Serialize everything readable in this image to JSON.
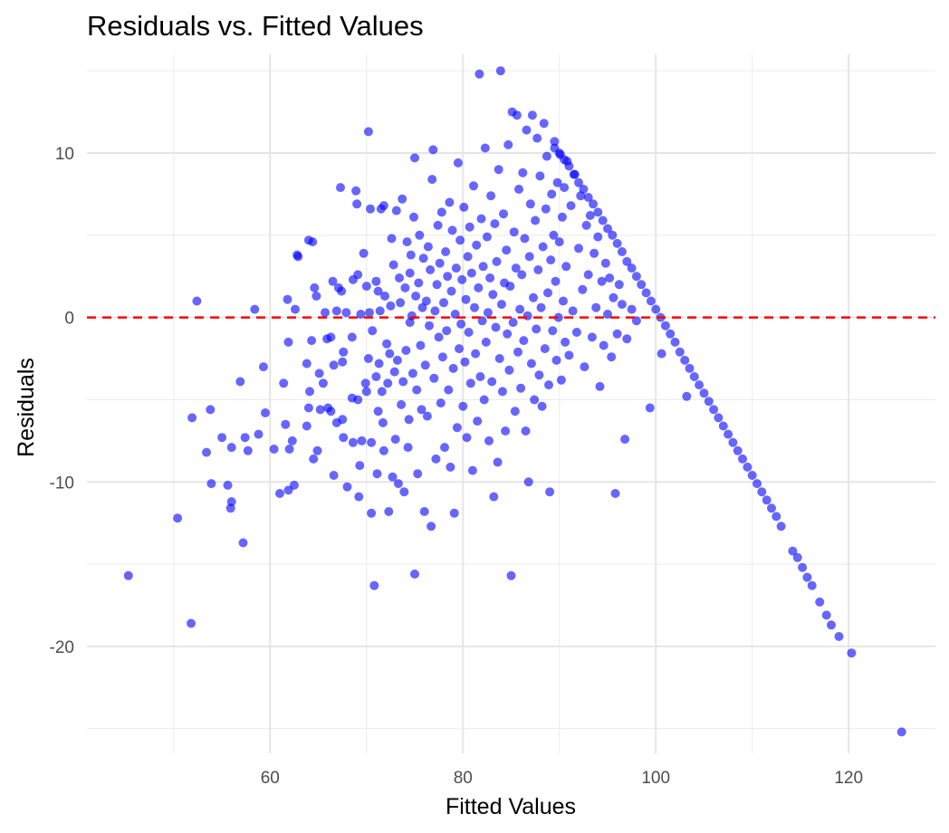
{
  "chart_data": {
    "type": "scatter",
    "title": "Residuals vs. Fitted Values",
    "xlabel": "Fitted Values",
    "ylabel": "Residuals",
    "xlim": [
      41,
      129
    ],
    "ylim": [
      -26.5,
      16
    ],
    "x_ticks": [
      60,
      80,
      100,
      120
    ],
    "y_ticks": [
      -20,
      -10,
      0,
      10
    ],
    "x_tick_labels": [
      "60",
      "80",
      "100",
      "120"
    ],
    "y_tick_labels": [
      "-20",
      "-10",
      "0",
      "10"
    ],
    "grid": true,
    "point_color": "#0000ff",
    "point_alpha": 0.6,
    "reference_line": {
      "y": 0,
      "color": "#ff0000",
      "style": "dashed"
    },
    "points": [
      [
        45.3,
        -15.7
      ],
      [
        50.4,
        -12.2
      ],
      [
        51.8,
        -18.6
      ],
      [
        51.9,
        -6.1
      ],
      [
        52.4,
        1.0
      ],
      [
        53.4,
        -8.2
      ],
      [
        53.8,
        -5.6
      ],
      [
        53.9,
        -10.1
      ],
      [
        55.0,
        -7.3
      ],
      [
        55.6,
        -10.2
      ],
      [
        55.9,
        -11.6
      ],
      [
        56.0,
        -11.2
      ],
      [
        56.0,
        -7.9
      ],
      [
        56.9,
        -3.9
      ],
      [
        57.2,
        -13.7
      ],
      [
        57.4,
        -7.3
      ],
      [
        57.7,
        -8.1
      ],
      [
        58.4,
        0.5
      ],
      [
        58.8,
        -7.1
      ],
      [
        59.3,
        -3.0
      ],
      [
        59.5,
        -5.8
      ],
      [
        60.4,
        -8.0
      ],
      [
        61.0,
        -10.7
      ],
      [
        61.4,
        -4.0
      ],
      [
        61.6,
        -6.5
      ],
      [
        61.8,
        1.1
      ],
      [
        61.9,
        -1.5
      ],
      [
        61.9,
        -10.5
      ],
      [
        62.0,
        -8.0
      ],
      [
        62.3,
        -7.5
      ],
      [
        62.5,
        -10.2
      ],
      [
        62.6,
        0.5
      ],
      [
        62.8,
        3.8
      ],
      [
        62.9,
        3.7
      ],
      [
        63.8,
        -6.6
      ],
      [
        63.8,
        -2.8
      ],
      [
        64.0,
        4.7
      ],
      [
        64.0,
        -5.5
      ],
      [
        64.1,
        -4.5
      ],
      [
        64.3,
        -1.4
      ],
      [
        64.4,
        4.6
      ],
      [
        64.5,
        -8.6
      ],
      [
        64.6,
        1.8
      ],
      [
        64.8,
        1.3
      ],
      [
        64.9,
        -8.1
      ],
      [
        65.1,
        -3.4
      ],
      [
        65.2,
        -5.6
      ],
      [
        65.5,
        -4.0
      ],
      [
        65.7,
        0.3
      ],
      [
        65.9,
        -1.3
      ],
      [
        66.0,
        -5.5
      ],
      [
        66.3,
        -1.2
      ],
      [
        66.3,
        -5.7
      ],
      [
        66.5,
        2.2
      ],
      [
        66.6,
        -2.9
      ],
      [
        66.6,
        -9.6
      ],
      [
        66.9,
        0.4
      ],
      [
        66.9,
        -6.4
      ],
      [
        67.1,
        1.8
      ],
      [
        67.3,
        7.9
      ],
      [
        67.4,
        1.6
      ],
      [
        67.5,
        -2.7
      ],
      [
        67.5,
        -6.2
      ],
      [
        67.6,
        -2.1
      ],
      [
        67.6,
        -7.3
      ],
      [
        67.9,
        0.3
      ],
      [
        68.0,
        -10.3
      ],
      [
        68.5,
        -4.9
      ],
      [
        68.5,
        -1.2
      ],
      [
        68.6,
        2.3
      ],
      [
        68.6,
        -7.6
      ],
      [
        68.9,
        7.7
      ],
      [
        69.0,
        6.9
      ],
      [
        69.1,
        2.6
      ],
      [
        69.1,
        -5.0
      ],
      [
        69.2,
        -10.9
      ],
      [
        69.3,
        -9.0
      ],
      [
        69.4,
        0.2
      ],
      [
        69.5,
        -7.5
      ],
      [
        69.7,
        3.9
      ],
      [
        69.9,
        -4.0
      ],
      [
        70.0,
        -4.5
      ],
      [
        70.0,
        1.9
      ],
      [
        70.2,
        11.3
      ],
      [
        70.2,
        -2.5
      ],
      [
        70.3,
        0.3
      ],
      [
        70.4,
        6.6
      ],
      [
        70.5,
        -11.9
      ],
      [
        70.5,
        -7.6
      ],
      [
        70.6,
        -0.8
      ],
      [
        70.8,
        -16.3
      ],
      [
        71.0,
        2.2
      ],
      [
        71.0,
        -3.6
      ],
      [
        71.1,
        -9.5
      ],
      [
        71.2,
        -5.7
      ],
      [
        71.2,
        1.6
      ],
      [
        71.3,
        -2.8
      ],
      [
        71.4,
        0.4
      ],
      [
        71.5,
        6.6
      ],
      [
        71.6,
        -4.5
      ],
      [
        71.7,
        -6.4
      ],
      [
        71.8,
        6.8
      ],
      [
        71.8,
        -8.1
      ],
      [
        71.9,
        1.3
      ],
      [
        72.1,
        -1.6
      ],
      [
        72.2,
        -4.0
      ],
      [
        72.3,
        -11.8
      ],
      [
        72.4,
        -2.2
      ],
      [
        72.5,
        0.7
      ],
      [
        72.6,
        4.8
      ],
      [
        72.7,
        -9.7
      ],
      [
        72.8,
        3.2
      ],
      [
        72.9,
        -3.3
      ],
      [
        73.0,
        -7.4
      ],
      [
        73.1,
        6.5
      ],
      [
        73.2,
        -2.6
      ],
      [
        73.3,
        -10.1
      ],
      [
        73.4,
        2.4
      ],
      [
        73.5,
        0.9
      ],
      [
        73.6,
        -5.3
      ],
      [
        73.7,
        7.2
      ],
      [
        73.8,
        -3.9
      ],
      [
        73.9,
        -10.6
      ],
      [
        74.0,
        1.8
      ],
      [
        74.1,
        -2.0
      ],
      [
        74.2,
        4.6
      ],
      [
        74.3,
        -7.9
      ],
      [
        74.4,
        -6.2
      ],
      [
        74.5,
        2.7
      ],
      [
        74.5,
        -0.3
      ],
      [
        74.6,
        3.8
      ],
      [
        74.7,
        0.1
      ],
      [
        74.8,
        -3.4
      ],
      [
        74.9,
        6.1
      ],
      [
        75.0,
        9.7
      ],
      [
        75.0,
        -15.6
      ],
      [
        75.1,
        1.3
      ],
      [
        75.2,
        -4.4
      ],
      [
        75.3,
        -9.5
      ],
      [
        75.4,
        2.1
      ],
      [
        75.5,
        5.0
      ],
      [
        75.6,
        -1.7
      ],
      [
        75.7,
        -5.6
      ],
      [
        75.8,
        0.6
      ],
      [
        75.9,
        3.6
      ],
      [
        76.0,
        -11.8
      ],
      [
        76.1,
        -2.9
      ],
      [
        76.2,
        1.0
      ],
      [
        76.3,
        -6.0
      ],
      [
        76.4,
        4.3
      ],
      [
        76.5,
        -0.5
      ],
      [
        76.6,
        2.9
      ],
      [
        76.7,
        -12.7
      ],
      [
        76.8,
        8.4
      ],
      [
        76.9,
        10.2
      ],
      [
        77.0,
        -3.7
      ],
      [
        77.1,
        0.4
      ],
      [
        77.2,
        -8.6
      ],
      [
        77.3,
        2.0
      ],
      [
        77.4,
        5.6
      ],
      [
        77.5,
        -1.2
      ],
      [
        77.6,
        3.3
      ],
      [
        77.7,
        -5.2
      ],
      [
        77.8,
        6.4
      ],
      [
        77.9,
        -2.4
      ],
      [
        78.0,
        0.9
      ],
      [
        78.1,
        -7.9
      ],
      [
        78.2,
        4.0
      ],
      [
        78.3,
        -0.8
      ],
      [
        78.4,
        2.5
      ],
      [
        78.5,
        -4.4
      ],
      [
        78.6,
        7.0
      ],
      [
        78.7,
        -9.1
      ],
      [
        78.8,
        1.6
      ],
      [
        78.9,
        5.3
      ],
      [
        79.0,
        -3.1
      ],
      [
        79.1,
        -11.9
      ],
      [
        79.2,
        0.2
      ],
      [
        79.3,
        3.0
      ],
      [
        79.4,
        -6.7
      ],
      [
        79.5,
        9.4
      ],
      [
        79.6,
        -1.9
      ],
      [
        79.7,
        4.7
      ],
      [
        79.8,
        -0.4
      ],
      [
        79.9,
        2.3
      ],
      [
        80.0,
        -5.4
      ],
      [
        80.1,
        6.7
      ],
      [
        80.2,
        -2.7
      ],
      [
        80.3,
        1.1
      ],
      [
        80.4,
        -7.3
      ],
      [
        80.5,
        3.7
      ],
      [
        80.6,
        -0.9
      ],
      [
        80.7,
        5.5
      ],
      [
        80.8,
        -4.0
      ],
      [
        80.9,
        2.7
      ],
      [
        81.0,
        -9.3
      ],
      [
        81.1,
        8.0
      ],
      [
        81.2,
        0.6
      ],
      [
        81.3,
        -2.2
      ],
      [
        81.4,
        4.4
      ],
      [
        81.5,
        -6.3
      ],
      [
        81.6,
        1.8
      ],
      [
        81.7,
        14.8
      ],
      [
        81.8,
        -3.6
      ],
      [
        81.9,
        6.0
      ],
      [
        82.0,
        -0.2
      ],
      [
        82.1,
        3.1
      ],
      [
        82.2,
        -5.0
      ],
      [
        82.3,
        10.3
      ],
      [
        82.4,
        -1.5
      ],
      [
        82.5,
        4.9
      ],
      [
        82.6,
        0.3
      ],
      [
        82.7,
        -7.5
      ],
      [
        82.8,
        2.4
      ],
      [
        82.9,
        7.4
      ],
      [
        83.0,
        -3.9
      ],
      [
        83.1,
        1.4
      ],
      [
        83.2,
        -10.9
      ],
      [
        83.3,
        5.7
      ],
      [
        83.4,
        -0.6
      ],
      [
        83.5,
        3.4
      ],
      [
        83.6,
        -8.8
      ],
      [
        83.7,
        9.0
      ],
      [
        83.8,
        -2.5
      ],
      [
        83.9,
        15.0
      ],
      [
        84.0,
        0.8
      ],
      [
        84.1,
        -4.5
      ],
      [
        84.2,
        6.3
      ],
      [
        84.3,
        2.1
      ],
      [
        84.4,
        -6.9
      ],
      [
        84.5,
        4.1
      ],
      [
        84.6,
        -1.0
      ],
      [
        84.7,
        10.5
      ],
      [
        84.8,
        -3.2
      ],
      [
        84.9,
        1.9
      ],
      [
        85.0,
        -15.7
      ],
      [
        85.1,
        12.5
      ],
      [
        85.2,
        -0.3
      ],
      [
        85.3,
        5.2
      ],
      [
        85.4,
        -5.7
      ],
      [
        85.5,
        3.0
      ],
      [
        85.6,
        12.3
      ],
      [
        85.7,
        -2.1
      ],
      [
        85.8,
        7.8
      ],
      [
        85.9,
        0.5
      ],
      [
        86.0,
        -4.3
      ],
      [
        86.1,
        2.6
      ],
      [
        86.2,
        8.8
      ],
      [
        86.3,
        -1.4
      ],
      [
        86.4,
        4.8
      ],
      [
        86.5,
        -6.9
      ],
      [
        86.6,
        11.4
      ],
      [
        86.7,
        0.1
      ],
      [
        86.8,
        -10.0
      ],
      [
        86.9,
        3.7
      ],
      [
        87.0,
        6.9
      ],
      [
        87.1,
        -2.8
      ],
      [
        87.2,
        12.3
      ],
      [
        87.3,
        1.2
      ],
      [
        87.4,
        -5.0
      ],
      [
        87.5,
        5.9
      ],
      [
        87.6,
        -0.7
      ],
      [
        87.7,
        10.9
      ],
      [
        87.8,
        2.9
      ],
      [
        87.9,
        -3.5
      ],
      [
        88.0,
        8.6
      ],
      [
        88.1,
        0.6
      ],
      [
        88.2,
        -5.4
      ],
      [
        88.3,
        4.3
      ],
      [
        88.4,
        11.8
      ],
      [
        88.5,
        -1.9
      ],
      [
        88.6,
        6.6
      ],
      [
        88.7,
        9.8
      ],
      [
        88.8,
        1.5
      ],
      [
        88.9,
        -4.1
      ],
      [
        89.0,
        -10.6
      ],
      [
        89.1,
        3.5
      ],
      [
        89.2,
        7.5
      ],
      [
        89.3,
        -0.8
      ],
      [
        89.4,
        5.0
      ],
      [
        89.5,
        10.7
      ],
      [
        89.6,
        2.2
      ],
      [
        89.7,
        -2.6
      ],
      [
        89.8,
        8.2
      ],
      [
        89.9,
        0.0
      ],
      [
        90.0,
        4.6
      ],
      [
        90.1,
        9.9
      ],
      [
        90.2,
        -3.8
      ],
      [
        90.3,
        6.1
      ],
      [
        90.4,
        1.0
      ],
      [
        90.5,
        7.9
      ],
      [
        90.6,
        -1.5
      ],
      [
        90.7,
        3.1
      ],
      [
        90.8,
        9.5
      ],
      [
        91.0,
        -2.3
      ],
      [
        91.2,
        6.8
      ],
      [
        91.4,
        0.4
      ],
      [
        91.6,
        8.7
      ],
      [
        91.8,
        -0.9
      ],
      [
        92.0,
        4.2
      ],
      [
        92.2,
        7.4
      ],
      [
        92.4,
        1.7
      ],
      [
        92.6,
        -3.0
      ],
      [
        92.8,
        5.6
      ],
      [
        93.0,
        2.6
      ],
      [
        93.2,
        6.2
      ],
      [
        93.4,
        -1.2
      ],
      [
        93.6,
        3.9
      ],
      [
        93.8,
        0.6
      ],
      [
        94.0,
        4.9
      ],
      [
        94.2,
        -4.2
      ],
      [
        94.4,
        2.2
      ],
      [
        94.6,
        -1.7
      ],
      [
        94.8,
        3.3
      ],
      [
        95.0,
        0.2
      ],
      [
        95.2,
        2.4
      ],
      [
        95.4,
        -2.4
      ],
      [
        95.6,
        1.2
      ],
      [
        95.8,
        -10.7
      ],
      [
        96.0,
        -1.0
      ],
      [
        96.2,
        2.0
      ],
      [
        96.5,
        0.8
      ],
      [
        96.8,
        -7.4
      ],
      [
        97.0,
        -1.3
      ],
      [
        97.5,
        0.5
      ],
      [
        98.0,
        -0.2
      ],
      [
        99.4,
        -5.5
      ],
      [
        100.6,
        -2.2
      ],
      [
        103.2,
        -4.8
      ],
      [
        89.5,
        10.3
      ],
      [
        90.0,
        10.0
      ],
      [
        90.5,
        9.6
      ],
      [
        91.0,
        9.2
      ],
      [
        91.5,
        8.7
      ],
      [
        92.0,
        8.2
      ],
      [
        92.5,
        7.8
      ],
      [
        93.0,
        7.3
      ],
      [
        93.5,
        6.9
      ],
      [
        94.0,
        6.4
      ],
      [
        94.5,
        5.9
      ],
      [
        95.0,
        5.4
      ],
      [
        95.5,
        5.0
      ],
      [
        96.0,
        4.5
      ],
      [
        96.5,
        4.0
      ],
      [
        97.0,
        3.4
      ],
      [
        97.5,
        3.0
      ],
      [
        98.0,
        2.5
      ],
      [
        98.5,
        2.0
      ],
      [
        99.0,
        1.5
      ],
      [
        99.5,
        1.0
      ],
      [
        100.0,
        0.5
      ],
      [
        100.5,
        0.0
      ],
      [
        101.0,
        -0.5
      ],
      [
        101.5,
        -1.0
      ],
      [
        102.0,
        -1.5
      ],
      [
        102.5,
        -2.1
      ],
      [
        103.0,
        -2.6
      ],
      [
        103.5,
        -3.1
      ],
      [
        104.0,
        -3.6
      ],
      [
        104.5,
        -4.1
      ],
      [
        105.0,
        -4.6
      ],
      [
        105.5,
        -5.1
      ],
      [
        106.0,
        -5.6
      ],
      [
        106.5,
        -6.1
      ],
      [
        107.0,
        -6.6
      ],
      [
        107.5,
        -7.1
      ],
      [
        108.0,
        -7.6
      ],
      [
        108.5,
        -8.1
      ],
      [
        109.0,
        -8.6
      ],
      [
        109.5,
        -9.1
      ],
      [
        110.0,
        -9.6
      ],
      [
        110.5,
        -10.1
      ],
      [
        111.0,
        -10.6
      ],
      [
        111.5,
        -11.1
      ],
      [
        112.0,
        -11.6
      ],
      [
        112.5,
        -12.1
      ],
      [
        113.0,
        -12.7
      ],
      [
        114.2,
        -14.2
      ],
      [
        114.7,
        -14.6
      ],
      [
        115.2,
        -15.2
      ],
      [
        115.7,
        -15.8
      ],
      [
        116.2,
        -16.3
      ],
      [
        117.0,
        -17.3
      ],
      [
        117.7,
        -18.1
      ],
      [
        118.2,
        -18.7
      ],
      [
        119.0,
        -19.4
      ],
      [
        120.3,
        -20.4
      ],
      [
        125.5,
        -25.2
      ]
    ]
  }
}
